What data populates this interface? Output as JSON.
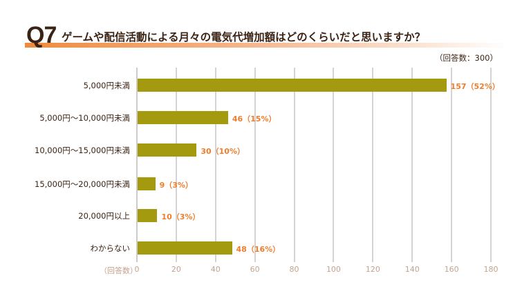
{
  "header": {
    "question_number": "Q7",
    "title": "ゲームや配信活動による月々の電気代増加額はどのくらいだと思いますか？",
    "respondents": "（回答数：300）"
  },
  "colors": {
    "bar": "#a39a10",
    "value_label": "#f07d2c",
    "axis_tick": "#c2a38e",
    "title_accent": "#f08a3c"
  },
  "chart_data": {
    "type": "bar",
    "orientation": "horizontal",
    "title": "ゲームや配信活動による月々の電気代増加額はどのくらいだと思いますか？",
    "subtitle": "（回答数：300）",
    "xlabel": "（回答数）",
    "ylabel": "",
    "xlim": [
      0,
      180
    ],
    "xticks": [
      0,
      20,
      40,
      60,
      80,
      100,
      120,
      140,
      160,
      180
    ],
    "grid": true,
    "categories": [
      "5,000円未満",
      "5,000円〜10,000円未満",
      "10,000円〜15,000円未満",
      "15,000円〜20,000円未満",
      "20,000円以上",
      "わからない"
    ],
    "values": [
      157,
      46,
      30,
      9,
      10,
      48
    ],
    "percentages": [
      "52%",
      "15%",
      "10%",
      "3%",
      "3%",
      "16%"
    ],
    "value_labels": [
      "157（52%）",
      "46（15%）",
      "30（10%）",
      "9（3%）",
      "10（3%）",
      "48（16%）"
    ]
  },
  "axis": {
    "unit_label": "（回答数）",
    "ticks": [
      "0",
      "20",
      "40",
      "60",
      "80",
      "100",
      "120",
      "140",
      "160",
      "180"
    ]
  }
}
